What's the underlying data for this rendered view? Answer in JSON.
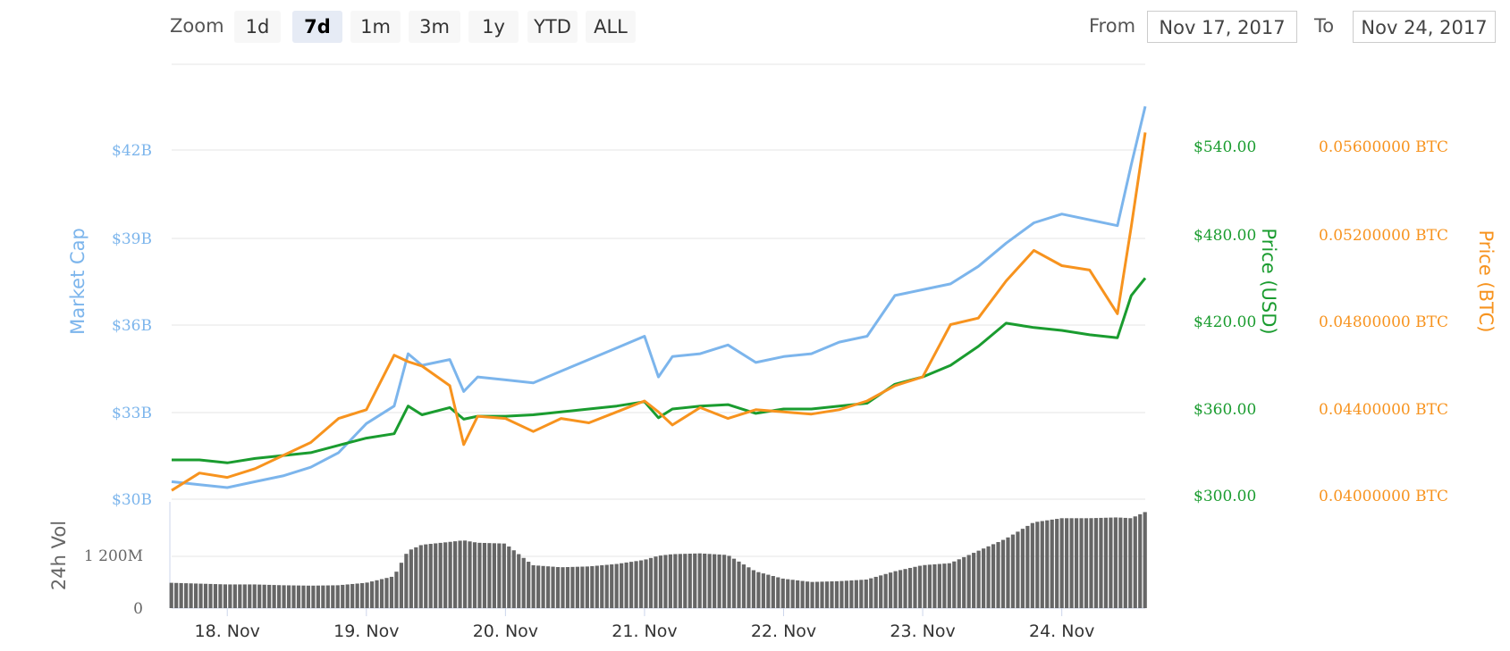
{
  "toolbar": {
    "zoom_label": "Zoom",
    "zoom_buttons": [
      "1d",
      "7d",
      "1m",
      "3m",
      "1y",
      "YTD",
      "ALL"
    ],
    "active_zoom": "7d",
    "from_label": "From",
    "from_value": "Nov 17, 2017",
    "to_label": "To",
    "to_value": "Nov 24, 2017"
  },
  "colors": {
    "market_cap": "#7cb5ec",
    "price_usd": "#1a9c2f",
    "price_btc": "#f7931e",
    "volume": "#666666",
    "grid": "#e6e6e6"
  },
  "chart_data": {
    "type": "line",
    "x_axis": {
      "ticks": [
        "18. Nov",
        "19. Nov",
        "20. Nov",
        "21. Nov",
        "22. Nov",
        "23. Nov",
        "24. Nov"
      ]
    },
    "axes": {
      "market_cap": {
        "title": "Market Cap",
        "ticks": [
          "$30B",
          "$33B",
          "$36B",
          "$39B",
          "$42B"
        ],
        "range": [
          30,
          42
        ]
      },
      "price_usd": {
        "title": "Price (USD)",
        "ticks": [
          "$300.00",
          "$360.00",
          "$420.00",
          "$480.00",
          "$540.00"
        ],
        "range": [
          300,
          540
        ]
      },
      "price_btc": {
        "title": "Price (BTC)",
        "ticks": [
          "0.04000000 BTC",
          "0.04400000 BTC",
          "0.04800000 BTC",
          "0.05200000 BTC",
          "0.05600000 BTC"
        ],
        "range": [
          0.04,
          0.056
        ]
      },
      "volume": {
        "title": "24h Vol",
        "ticks": [
          "0",
          "1 200M"
        ]
      }
    },
    "x": [
      17.6,
      17.8,
      18.0,
      18.2,
      18.4,
      18.6,
      18.8,
      19.0,
      19.2,
      19.3,
      19.4,
      19.6,
      19.7,
      19.8,
      20.0,
      20.2,
      20.4,
      20.6,
      20.8,
      21.0,
      21.1,
      21.2,
      21.4,
      21.6,
      21.8,
      22.0,
      22.2,
      22.4,
      22.6,
      22.8,
      23.0,
      23.2,
      23.4,
      23.6,
      23.8,
      24.0,
      24.2,
      24.4,
      24.5,
      24.6
    ],
    "series": [
      {
        "name": "Market Cap",
        "axis": "market_cap",
        "values": [
          30.6,
          30.5,
          30.4,
          30.6,
          30.8,
          31.1,
          31.6,
          32.6,
          33.2,
          35.0,
          34.6,
          34.8,
          33.7,
          34.2,
          34.1,
          34.0,
          34.4,
          34.8,
          35.2,
          35.6,
          34.2,
          34.9,
          35.0,
          35.3,
          34.7,
          34.9,
          35.0,
          35.4,
          35.6,
          37.0,
          37.2,
          37.4,
          38.0,
          38.8,
          39.5,
          39.8,
          39.6,
          39.4,
          41.5,
          43.5
        ]
      },
      {
        "name": "Price (USD)",
        "axis": "price_usd",
        "values": [
          327,
          327,
          325,
          328,
          330,
          332,
          337,
          342,
          345,
          364,
          358,
          363,
          355,
          357,
          357,
          358,
          360,
          362,
          364,
          367,
          356,
          362,
          364,
          365,
          359,
          362,
          362,
          364,
          366,
          379,
          384,
          392,
          405,
          421,
          418,
          416,
          413,
          411,
          440,
          452
        ]
      },
      {
        "name": "Price (BTC)",
        "axis": "price_btc",
        "values": [
          0.0404,
          0.0412,
          0.041,
          0.0414,
          0.042,
          0.0426,
          0.0437,
          0.0441,
          0.0466,
          0.0463,
          0.0461,
          0.0452,
          0.0425,
          0.0438,
          0.0437,
          0.0431,
          0.0437,
          0.0435,
          0.044,
          0.0445,
          0.044,
          0.0434,
          0.0442,
          0.0437,
          0.0441,
          0.044,
          0.0439,
          0.0441,
          0.0445,
          0.0452,
          0.0456,
          0.048,
          0.0483,
          0.05,
          0.0514,
          0.0507,
          0.0505,
          0.0485,
          0.0525,
          0.0568
        ]
      },
      {
        "name": "24h Vol",
        "axis": "volume",
        "values": [
          0.62,
          0.6,
          0.58,
          0.58,
          0.56,
          0.55,
          0.56,
          0.62,
          0.78,
          1.4,
          1.55,
          1.62,
          1.66,
          1.6,
          1.58,
          1.05,
          1.0,
          1.02,
          1.08,
          1.18,
          1.28,
          1.32,
          1.34,
          1.3,
          0.9,
          0.72,
          0.64,
          0.66,
          0.7,
          0.9,
          1.05,
          1.1,
          1.4,
          1.7,
          2.1,
          2.2,
          2.2,
          2.22,
          2.2,
          2.35
        ]
      }
    ]
  }
}
